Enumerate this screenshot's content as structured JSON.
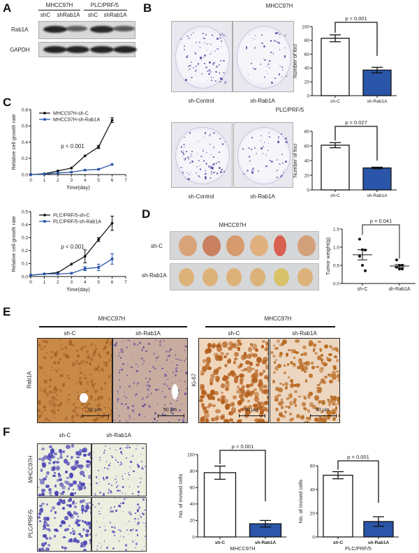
{
  "panel_labels": [
    "A",
    "B",
    "C",
    "D",
    "E",
    "F"
  ],
  "A": {
    "cell_lines": [
      "MHCC97H",
      "PLC/PRF/5"
    ],
    "lanes": [
      "shC",
      "shRab1A",
      "shC",
      "shRab1A"
    ],
    "rows": [
      "Rab1A",
      "GAPDH"
    ],
    "band_intensity": {
      "Rab1A": [
        1.0,
        0.5,
        0.95,
        0.55
      ],
      "GAPDH": [
        1.0,
        1.0,
        1.0,
        1.0
      ]
    }
  },
  "B": {
    "title_top": "MHCC97H",
    "title_bottom": "PLC/PRF/5",
    "plate_labels": [
      "sh-Control",
      "sh-Rab1A"
    ],
    "stain_color": "#5a55a8"
  },
  "D": {
    "title": "MHCC97H",
    "row_labels": [
      "sh-C",
      "sh-Rab1A"
    ]
  },
  "E": {
    "groups": [
      "MHCC97H",
      "MHCC97H"
    ],
    "columns": [
      "sh-C",
      "sh-Rab1A",
      "sh-C",
      "sh-Rab1A"
    ],
    "row_labels": [
      "Rab1A",
      "Ki-67"
    ],
    "scale_bar": "50 μm",
    "stain_color": "#c0742c"
  },
  "F": {
    "columns": [
      "sh-C",
      "sh-Rab1A"
    ],
    "row_labels": [
      "MHCC97H",
      "PLC/PRF/5"
    ],
    "stain_color": "#4b45b5"
  },
  "colors": {
    "control": "#ffffff",
    "knockdown": "#2a55a8",
    "line_control": "#111111",
    "line_knockdown": "#2a55a8"
  },
  "chart_data": [
    {
      "id": "B1",
      "type": "bar",
      "categories": [
        "sh-C",
        "sh-Rab1A"
      ],
      "values": [
        83,
        37
      ],
      "errors": [
        5,
        4
      ],
      "ylabel": "Number of foci",
      "ylim": [
        0,
        100
      ],
      "yticks": [
        0,
        20,
        40,
        60,
        80,
        100
      ],
      "annotation": "p < 0.001",
      "xlabel": ""
    },
    {
      "id": "B2",
      "type": "bar",
      "categories": [
        "sh-C",
        "sh-Rab1A"
      ],
      "values": [
        61,
        30
      ],
      "errors": [
        3.5,
        1
      ],
      "ylabel": "Number of foci",
      "ylim": [
        0,
        80
      ],
      "yticks": [
        0,
        20,
        40,
        60,
        80
      ],
      "annotation": "p = 0.027",
      "xlabel": ""
    },
    {
      "id": "C1",
      "type": "line",
      "x": [
        0,
        1,
        2,
        3,
        4,
        5,
        6
      ],
      "xlabel": "Time(day)",
      "ylabel": "Relative cell growth rate",
      "xlim": [
        0,
        7
      ],
      "xticks": [
        0,
        1,
        2,
        3,
        4,
        5,
        6,
        7
      ],
      "ylim": [
        0,
        0.8
      ],
      "yticks": [
        "0.0",
        "0.2",
        "0.4",
        "0.6",
        "0.8"
      ],
      "annotation": "p < 0.001",
      "legend": "top-left",
      "series": [
        {
          "name": "MHCC97H-sh-C",
          "values": [
            0,
            0.01,
            0.045,
            0.08,
            0.23,
            0.34,
            0.67
          ],
          "errors": [
            0,
            0,
            0,
            0,
            0,
            0.02,
            0.03
          ]
        },
        {
          "name": "MHCC97H-sh-Rab1A",
          "values": [
            0,
            0.005,
            0.02,
            0.03,
            0.055,
            0.065,
            0.125
          ],
          "errors": [
            0,
            0,
            0,
            0,
            0,
            0,
            0
          ]
        }
      ]
    },
    {
      "id": "C2",
      "type": "line",
      "x": [
        0,
        1,
        2,
        3,
        4,
        5,
        6
      ],
      "xlabel": "Time(day)",
      "ylabel": "Relative cell growth rate",
      "xlim": [
        0,
        7
      ],
      "xticks": [
        0,
        1,
        2,
        3,
        4,
        5,
        6,
        7
      ],
      "ylim": [
        0,
        0.5
      ],
      "yticks": [
        "0.0",
        "0.1",
        "0.2",
        "0.3",
        "0.4",
        "0.5"
      ],
      "annotation": "p < 0.001",
      "legend": "top-left",
      "series": [
        {
          "name": "PLC/PRF/5-sh-C",
          "values": [
            0.01,
            0.02,
            0.03,
            0.095,
            0.155,
            0.285,
            0.41
          ],
          "errors": [
            0,
            0,
            0,
            0,
            0.05,
            0.015,
            0.055
          ]
        },
        {
          "name": "PLC/PRF/5-sh-Rab1A",
          "values": [
            0.01,
            0.02,
            0.02,
            0.025,
            0.06,
            0.07,
            0.135
          ],
          "errors": [
            0,
            0,
            0,
            0,
            0.015,
            0.025,
            0.04
          ]
        }
      ]
    },
    {
      "id": "D",
      "type": "scatter",
      "categories": [
        "sh-C",
        "sh-Rab1A"
      ],
      "points": [
        [
          1.22,
          0.93,
          0.92,
          0.75,
          0.5,
          0.35
        ],
        [
          0.65,
          0.5,
          0.5,
          0.45,
          0.4,
          0.4
        ]
      ],
      "means": [
        0.79,
        0.48
      ],
      "sems": [
        0.14,
        0.04
      ],
      "ylabel": "Tumor weight(g)",
      "ylim": [
        0,
        1.5
      ],
      "yticks": [
        "0.0",
        "0.5",
        "1.0",
        "1.5"
      ],
      "annotation": "p = 0.041"
    },
    {
      "id": "F1",
      "type": "bar",
      "categories": [
        "sh-C",
        "sh-Rab1A"
      ],
      "values": [
        78,
        16
      ],
      "errors": [
        8,
        4
      ],
      "ylabel": "No. of invised cells",
      "xlabel": "MHCC97H",
      "ylim": [
        0,
        100
      ],
      "yticks": [
        0,
        20,
        40,
        60,
        80,
        100
      ],
      "annotation": "p < 0.001"
    },
    {
      "id": "F2",
      "type": "bar",
      "categories": [
        "sh-C",
        "sh-Rab1A"
      ],
      "values": [
        52,
        13
      ],
      "errors": [
        3,
        4
      ],
      "ylabel": "No. of invised cells",
      "xlabel": "PLC/PRF/5",
      "ylim": [
        0,
        60
      ],
      "yticks": [
        0,
        20,
        40,
        60
      ],
      "annotation": "p = 0.001"
    }
  ]
}
